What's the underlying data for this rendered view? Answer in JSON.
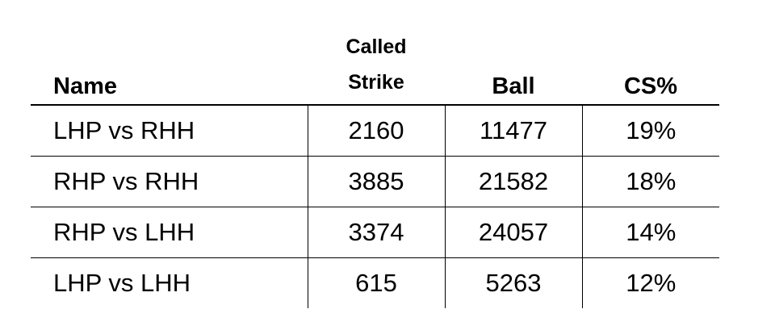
{
  "chart_data": {
    "type": "table",
    "columns": [
      "Name",
      "Called Strike",
      "Ball",
      "CS%"
    ],
    "column_header_lines": {
      "called_strike": [
        "Called",
        "Strike"
      ]
    },
    "rows": [
      {
        "name": "LHP vs RHH",
        "called_strike": "2160",
        "ball": "11477",
        "cs_pct": "19%"
      },
      {
        "name": "RHP vs RHH",
        "called_strike": "3885",
        "ball": "21582",
        "cs_pct": "18%"
      },
      {
        "name": "RHP vs LHH",
        "called_strike": "3374",
        "ball": "24057",
        "cs_pct": "14%"
      },
      {
        "name": "LHP vs LHH",
        "called_strike": "615",
        "ball": "5263",
        "cs_pct": "12%"
      }
    ]
  }
}
